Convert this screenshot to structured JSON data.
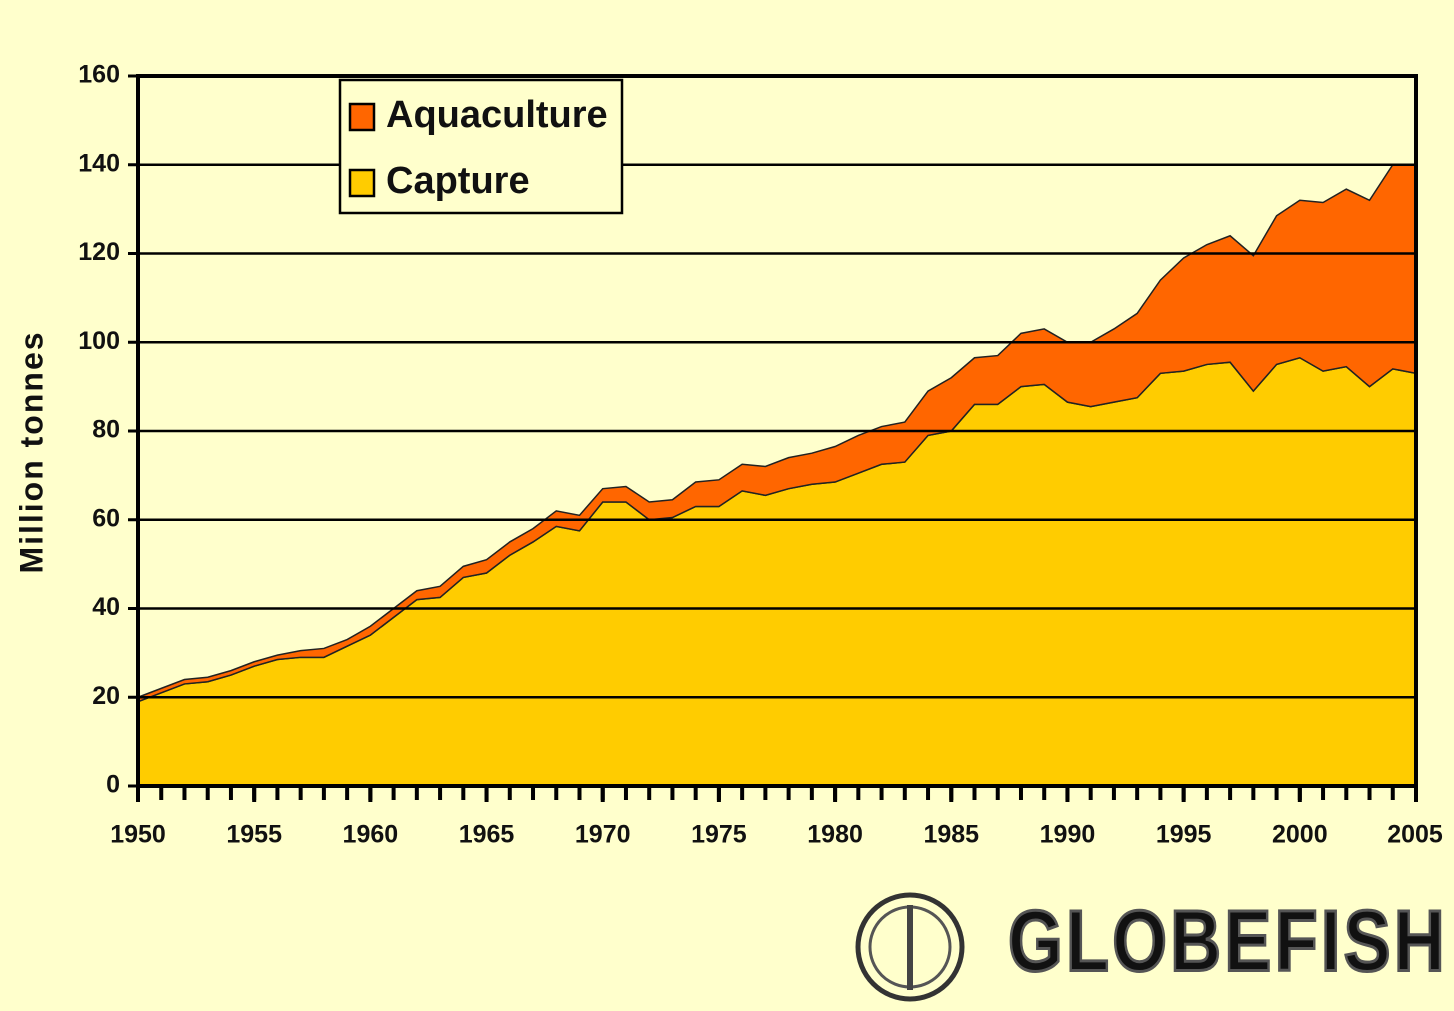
{
  "chart_data": {
    "type": "stacked-area",
    "ylabel": "Million tonnes",
    "x": [
      1950,
      1951,
      1952,
      1953,
      1954,
      1955,
      1956,
      1957,
      1958,
      1959,
      1960,
      1961,
      1962,
      1963,
      1964,
      1965,
      1966,
      1967,
      1968,
      1969,
      1970,
      1971,
      1972,
      1973,
      1974,
      1975,
      1976,
      1977,
      1978,
      1979,
      1980,
      1981,
      1982,
      1983,
      1984,
      1985,
      1986,
      1987,
      1988,
      1989,
      1990,
      1991,
      1992,
      1993,
      1994,
      1995,
      1996,
      1997,
      1998,
      1999,
      2000,
      2001,
      2002,
      2003,
      2004,
      2005
    ],
    "series": [
      {
        "name": "Capture",
        "color": "#ffcc00",
        "values": [
          19,
          21,
          23,
          23.5,
          25,
          27,
          28.5,
          29,
          29,
          31.5,
          34,
          38,
          42,
          42.5,
          47,
          48,
          52,
          55,
          58.5,
          57.5,
          64,
          64,
          60,
          60.5,
          63,
          63,
          66.5,
          65.5,
          67,
          68,
          68.5,
          70.5,
          72.5,
          73,
          79,
          80,
          86,
          86,
          90,
          90.5,
          86.5,
          85.5,
          86.5,
          87.5,
          93,
          93.5,
          95,
          95.5,
          89,
          95,
          96.5,
          93.5,
          94.5,
          90,
          94,
          93
        ]
      },
      {
        "name": "Aquaculture",
        "color": "#ff6600",
        "values": [
          1,
          1,
          1,
          1,
          1,
          1,
          1,
          1.5,
          2,
          1.5,
          2,
          2,
          2,
          2.5,
          2.5,
          3,
          3,
          3,
          3.5,
          3.5,
          3,
          3.5,
          4,
          4,
          5.5,
          6,
          6,
          6.5,
          7,
          7,
          8,
          8.5,
          8.5,
          9,
          10,
          12,
          10.5,
          11,
          12,
          12.5,
          13.5,
          14.5,
          16.5,
          19,
          21,
          25.5,
          27,
          28.5,
          30.5,
          33.5,
          35.5,
          38,
          40,
          42,
          46,
          47
        ]
      }
    ],
    "xlim": [
      1950,
      2005
    ],
    "xticks": [
      1950,
      1955,
      1960,
      1965,
      1970,
      1975,
      1980,
      1985,
      1990,
      1995,
      2000,
      2005
    ],
    "ylim": [
      0,
      160
    ],
    "yticks": [
      0,
      20,
      40,
      60,
      80,
      100,
      120,
      140,
      160
    ],
    "grid": true,
    "legend": "top-left",
    "logo": "GLOBEFISH"
  }
}
